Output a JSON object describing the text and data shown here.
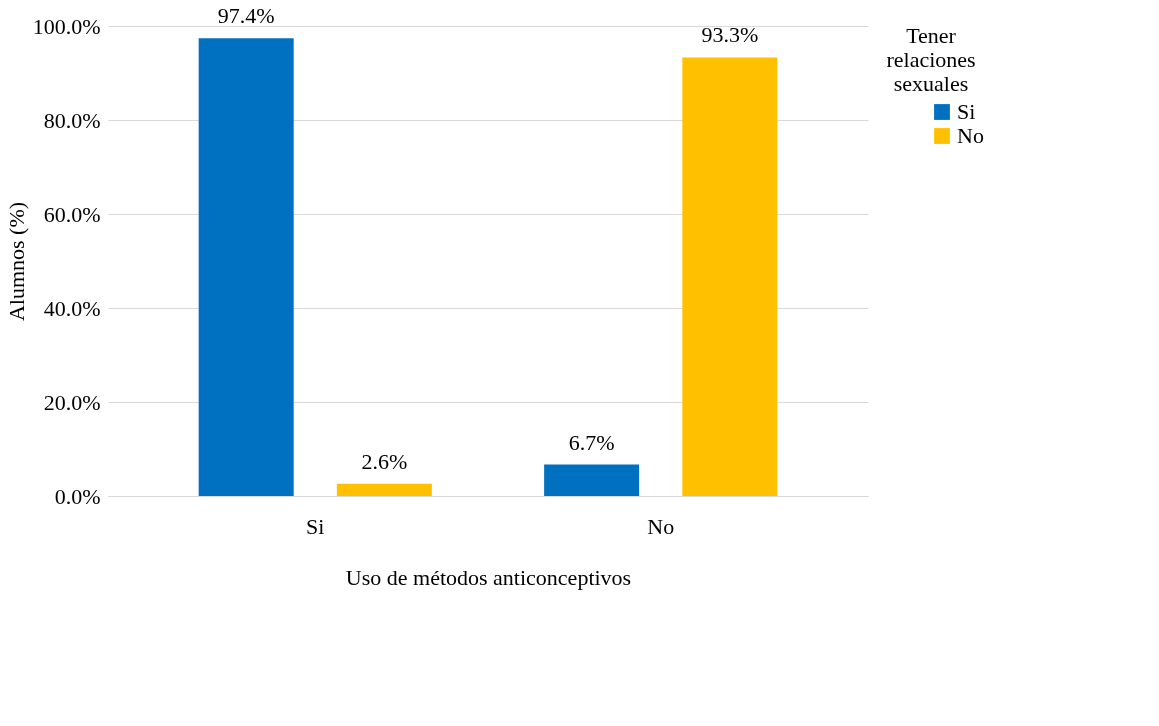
{
  "chart_data": {
    "type": "bar",
    "xlabel": "Uso de métodos anticonceptivos",
    "ylabel": "Alumnos (%)",
    "legend_title": "Tener relaciones sexuales",
    "categories": [
      "Si",
      "No"
    ],
    "series": [
      {
        "name": "Si",
        "color": "#0070c0",
        "values": [
          97.4,
          6.7
        ],
        "value_labels": [
          "97.4%",
          "6.7%"
        ]
      },
      {
        "name": "No",
        "color": "#ffc000",
        "values": [
          2.6,
          93.3
        ],
        "value_labels": [
          "2.6%",
          "93.3%"
        ]
      }
    ],
    "ylim": [
      0,
      100
    ],
    "yticks": [
      {
        "value": 0,
        "label": "0.0%"
      },
      {
        "value": 20,
        "label": "20.0%"
      },
      {
        "value": 40,
        "label": "40.0%"
      },
      {
        "value": 60,
        "label": "60.0%"
      },
      {
        "value": 80,
        "label": "80.0%"
      },
      {
        "value": 100,
        "label": "100.0%"
      }
    ],
    "grid": "y",
    "legend": "right"
  }
}
